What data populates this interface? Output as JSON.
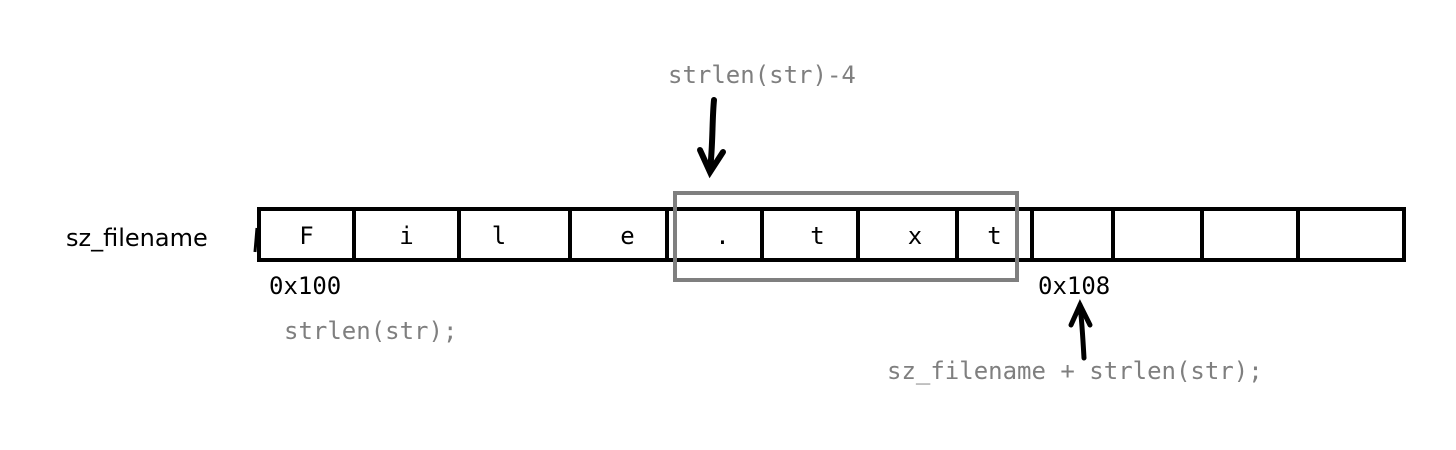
{
  "array": {
    "name": "sz_filename",
    "cells": [
      "F",
      "i",
      "l",
      "e",
      ".",
      "t",
      "x",
      "t",
      "",
      "",
      "",
      ""
    ]
  },
  "addresses": {
    "start": "0x100",
    "end": "0x108"
  },
  "annotations": {
    "top": "strlen(str)-4",
    "left": "strlen(str);",
    "bottom": "sz_filename + strlen(str);"
  },
  "colors": {
    "ink": "#000000",
    "annotation": "#7f7f7f",
    "highlight_box": "#7f7f7f"
  }
}
